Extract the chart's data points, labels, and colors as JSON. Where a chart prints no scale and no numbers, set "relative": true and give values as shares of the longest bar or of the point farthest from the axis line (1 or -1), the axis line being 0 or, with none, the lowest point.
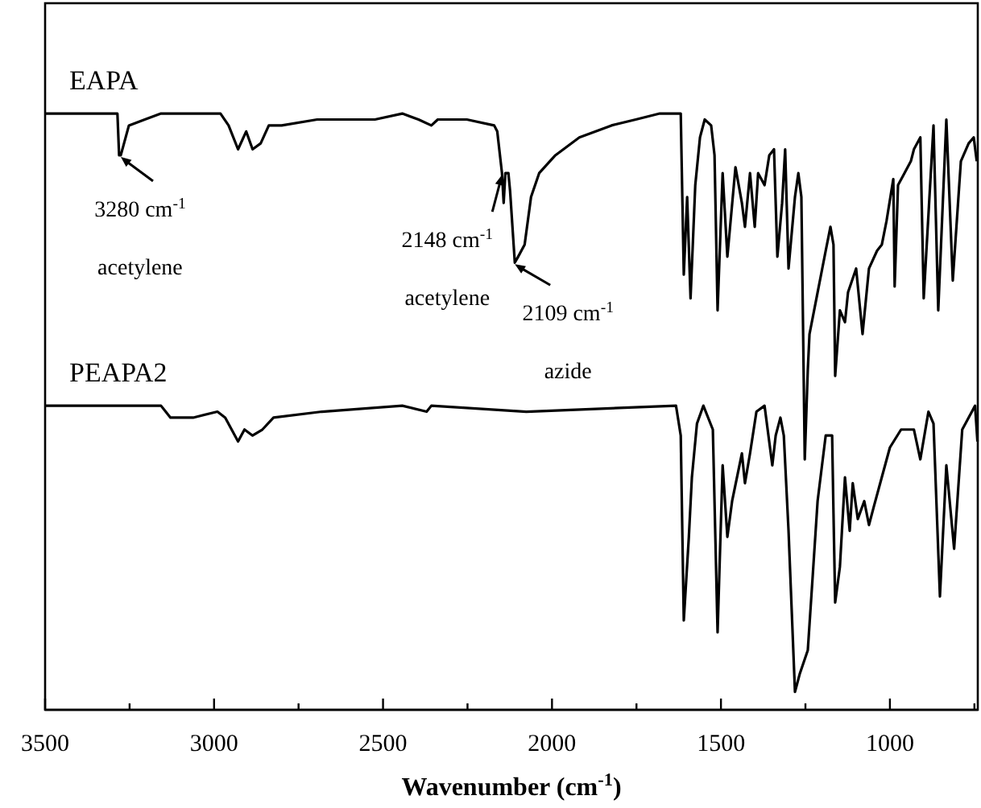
{
  "chart_data": {
    "type": "line",
    "relative": true,
    "xlabel": "Wavenumber (cm$^{-1}$)",
    "xlim": [
      3500,
      740
    ],
    "xticks": [
      3500,
      {
        "value": 3250,
        "label": null
      },
      3000,
      {
        "value": 2750,
        "label": null
      },
      2500,
      {
        "value": 2250,
        "label": null
      },
      2000,
      {
        "value": 1750,
        "label": null
      },
      1500,
      {
        "value": 1250,
        "label": null
      },
      1000,
      {
        "value": 750,
        "label": null
      }
    ],
    "tick_labels": "x",
    "legend": false,
    "marker": "none",
    "line_style": "solid",
    "series": [
      {
        "name": "EAPA",
        "color": "#000000",
        "x": [
          3500,
          3286,
          3281,
          3276,
          3252,
          3205,
          3157,
          2981,
          2957,
          2929,
          2905,
          2886,
          2862,
          2838,
          2800,
          2695,
          2524,
          2443,
          2395,
          2357,
          2338,
          2252,
          2171,
          2162,
          2148,
          2143,
          2138,
          2129,
          2124,
          2110,
          2100,
          2081,
          2062,
          2038,
          1990,
          1919,
          1824,
          1752,
          1681,
          1619,
          1610,
          1600,
          1590,
          1576,
          1562,
          1548,
          1529,
          1519,
          1510,
          1495,
          1481,
          1457,
          1438,
          1429,
          1414,
          1400,
          1390,
          1371,
          1357,
          1343,
          1333,
          1319,
          1310,
          1300,
          1281,
          1271,
          1262,
          1252,
          1243,
          1238,
          1214,
          1190,
          1176,
          1167,
          1162,
          1148,
          1133,
          1124,
          1100,
          1081,
          1062,
          1038,
          1024,
          1010,
          990,
          986,
          976,
          957,
          938,
          929,
          910,
          900,
          871,
          857,
          833,
          814,
          790,
          767,
          752,
          743
        ],
        "values": [
          1.0,
          1.0,
          0.93,
          0.93,
          0.98,
          0.99,
          1.0,
          1.0,
          0.98,
          0.94,
          0.97,
          0.94,
          0.95,
          0.98,
          0.98,
          0.99,
          0.99,
          1.0,
          0.99,
          0.98,
          0.99,
          0.99,
          0.98,
          0.97,
          0.9,
          0.85,
          0.9,
          0.9,
          0.87,
          0.75,
          0.76,
          0.78,
          0.86,
          0.9,
          0.93,
          0.96,
          0.98,
          0.99,
          1.0,
          1.0,
          0.73,
          0.86,
          0.69,
          0.88,
          0.96,
          0.99,
          0.98,
          0.93,
          0.67,
          0.9,
          0.76,
          0.91,
          0.85,
          0.81,
          0.9,
          0.81,
          0.9,
          0.88,
          0.93,
          0.94,
          0.76,
          0.85,
          0.94,
          0.74,
          0.86,
          0.9,
          0.86,
          0.42,
          0.57,
          0.63,
          0.7,
          0.77,
          0.81,
          0.78,
          0.56,
          0.67,
          0.65,
          0.7,
          0.74,
          0.63,
          0.74,
          0.77,
          0.78,
          0.82,
          0.89,
          0.71,
          0.88,
          0.9,
          0.92,
          0.94,
          0.96,
          0.69,
          0.98,
          0.67,
          0.99,
          0.72,
          0.92,
          0.95,
          0.96,
          0.92
        ]
      },
      {
        "name": "PEAPA2",
        "color": "#000000",
        "x": [
          3500,
          3157,
          3129,
          3062,
          2990,
          2967,
          2929,
          2910,
          2886,
          2857,
          2824,
          2681,
          2443,
          2371,
          2357,
          2076,
          1633,
          1619,
          1610,
          1595,
          1586,
          1571,
          1552,
          1524,
          1510,
          1495,
          1481,
          1467,
          1438,
          1429,
          1414,
          1395,
          1371,
          1348,
          1338,
          1324,
          1314,
          1300,
          1281,
          1267,
          1243,
          1229,
          1214,
          1190,
          1171,
          1167,
          1162,
          1148,
          1133,
          1119,
          1110,
          1095,
          1076,
          1062,
          1048,
          1024,
          1000,
          967,
          929,
          910,
          886,
          871,
          852,
          833,
          810,
          786,
          748,
          741
        ],
        "values": [
          0.51,
          0.51,
          0.49,
          0.49,
          0.5,
          0.49,
          0.45,
          0.47,
          0.46,
          0.47,
          0.49,
          0.5,
          0.51,
          0.5,
          0.51,
          0.5,
          0.51,
          0.46,
          0.15,
          0.29,
          0.39,
          0.48,
          0.51,
          0.47,
          0.13,
          0.41,
          0.29,
          0.35,
          0.43,
          0.38,
          0.43,
          0.5,
          0.51,
          0.41,
          0.46,
          0.49,
          0.46,
          0.3,
          0.03,
          0.06,
          0.1,
          0.22,
          0.35,
          0.46,
          0.46,
          0.33,
          0.18,
          0.24,
          0.39,
          0.3,
          0.38,
          0.32,
          0.35,
          0.31,
          0.34,
          0.39,
          0.44,
          0.47,
          0.47,
          0.42,
          0.5,
          0.48,
          0.19,
          0.41,
          0.27,
          0.47,
          0.51,
          0.45
        ]
      }
    ],
    "annotations": [
      {
        "text": "3280 cm$^{-1}$",
        "x": 3276,
        "y": 0.93
      },
      "acetylene",
      {
        "text": "2148 cm$^{-1}$",
        "x": 2148,
        "y": 0.9
      },
      "acetylene",
      {
        "text": "2109 cm$^{-1}$",
        "x": 2110,
        "y": 0.75
      },
      "azide"
    ]
  }
}
